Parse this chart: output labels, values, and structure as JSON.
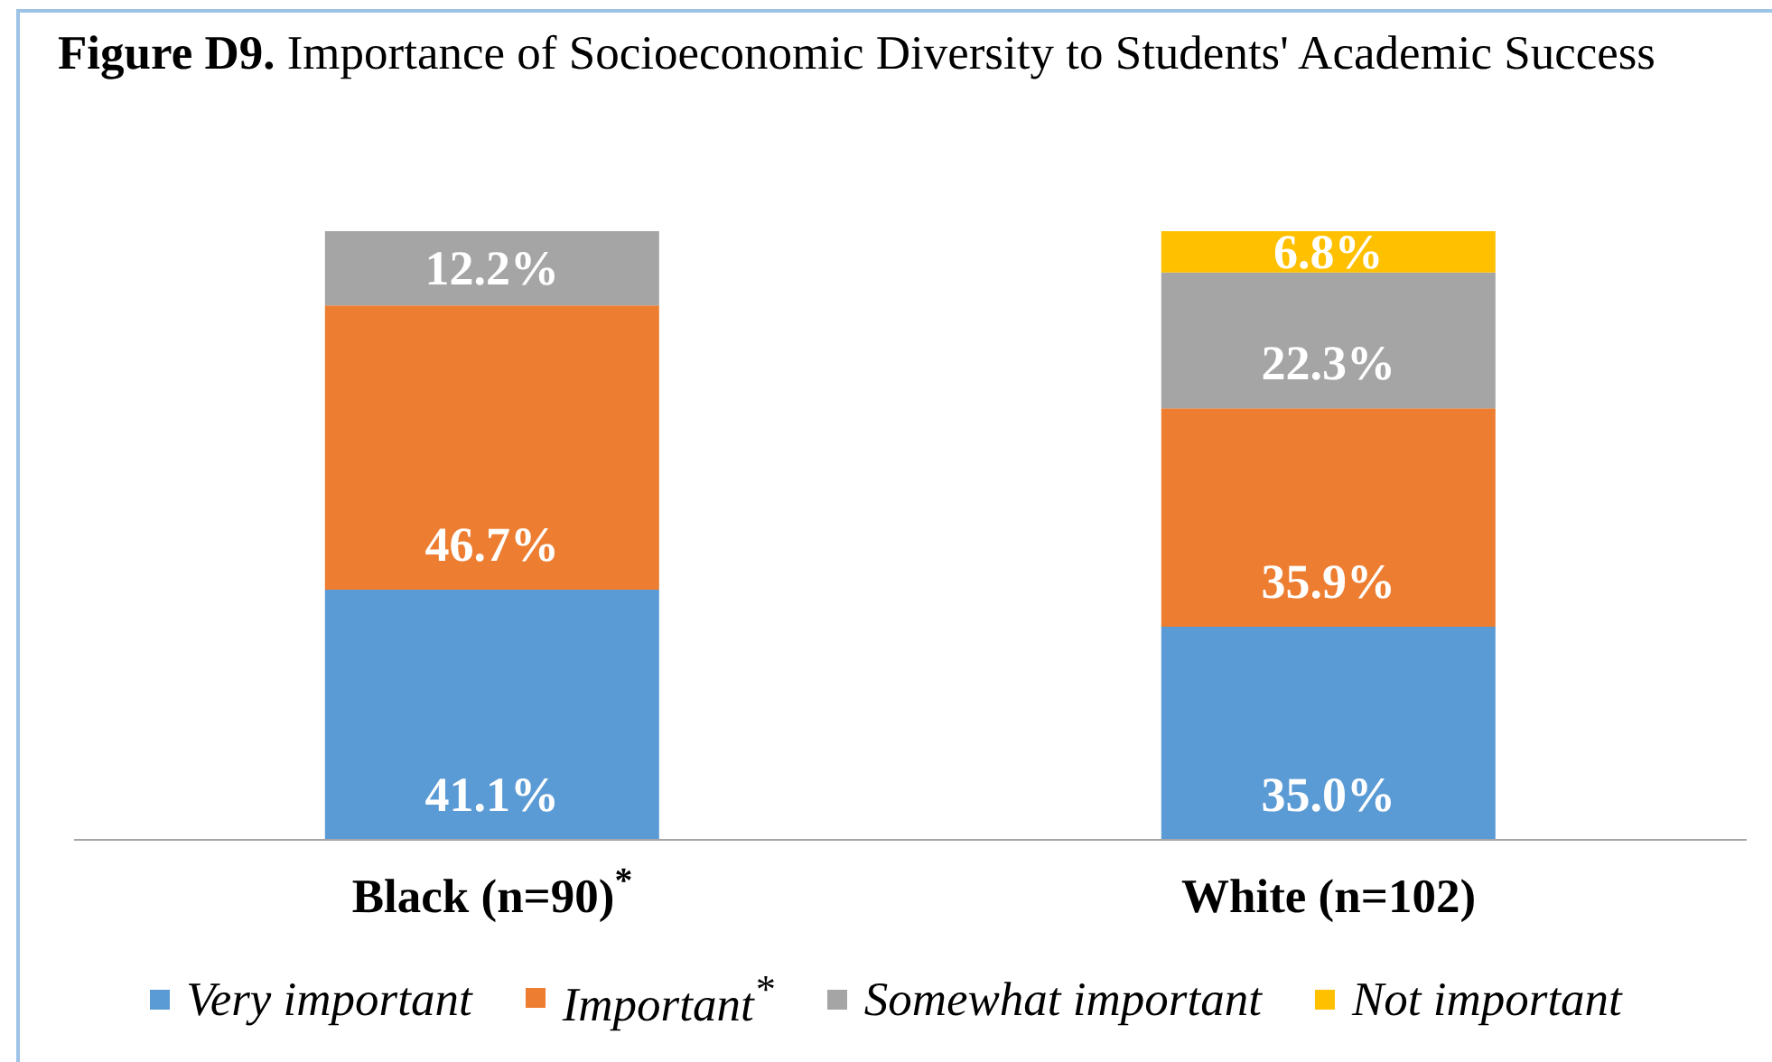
{
  "chart_data": {
    "type": "bar",
    "stacked": true,
    "title": "Figure D9. Importance of Socioeconomic Diversity to Students' Academic Success",
    "categories": [
      "Black (n=90)$^{*}$",
      "White (n=102)"
    ],
    "series": [
      {
        "name": "Very important",
        "color": "#5b9bd5",
        "values": [
          41.1,
          35.0
        ],
        "value_labels": [
          "41.1%",
          "35.0%"
        ]
      },
      {
        "name": "Important$^{*}$",
        "color": "#ed7d31",
        "values": [
          46.7,
          35.9
        ],
        "value_labels": [
          "46.7%",
          "35.9%"
        ]
      },
      {
        "name": "Somewhat important",
        "color": "#a5a5a5",
        "values": [
          12.2,
          22.3
        ],
        "value_labels": [
          "12.2%",
          "22.3%"
        ]
      },
      {
        "name": "Not important",
        "color": "#ffc000",
        "values": [
          0,
          6.8
        ],
        "value_labels": [
          null,
          "6.8%"
        ]
      }
    ],
    "legend": "bottom",
    "tick_labels": "x"
  }
}
